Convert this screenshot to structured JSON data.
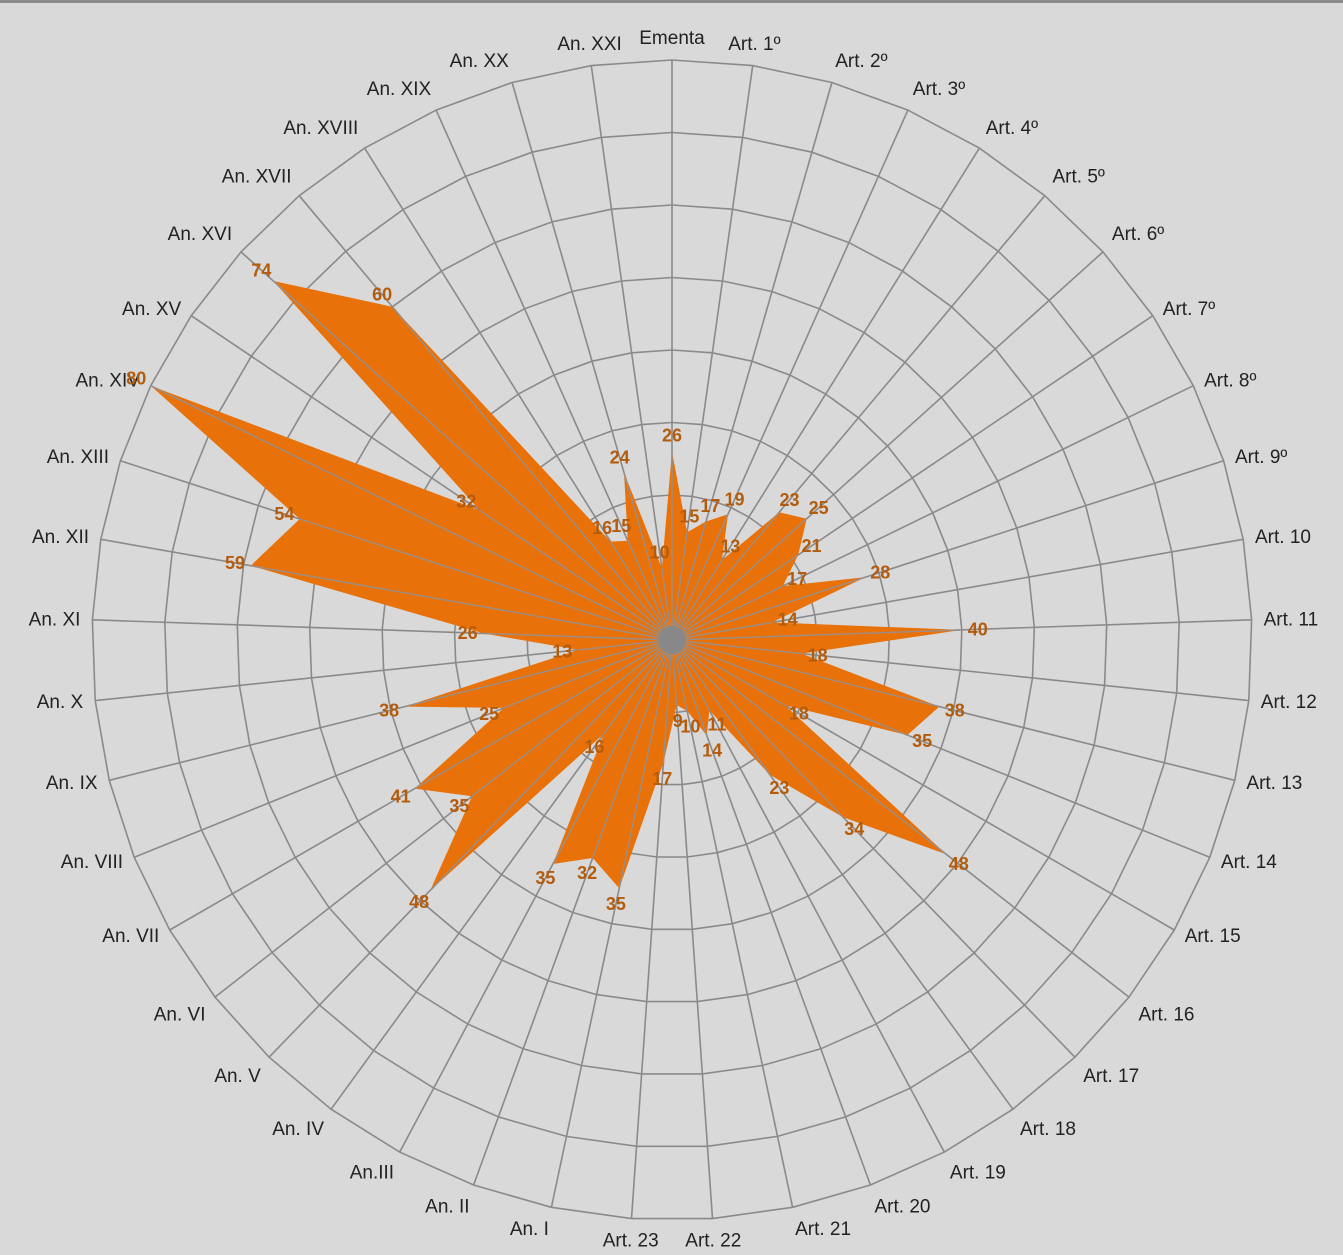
{
  "colors": {
    "background": "#d9d9d9",
    "grid": "#8a8a8a",
    "series_fill": "#e8710a",
    "data_label": "#b35c0e",
    "text": "#222222"
  },
  "chart_data": {
    "type": "radar",
    "categories": [
      "Ementa",
      "Art. 1º",
      "Art. 2º",
      "Art. 3º",
      "Art. 4º",
      "Art. 5º",
      "Art. 6º",
      "Art. 7º",
      "Art. 8º",
      "Art. 9º",
      "Art. 10",
      "Art. 11",
      "Art. 12",
      "Art. 13",
      "Art. 14",
      "Art. 15",
      "Art. 16",
      "Art. 17",
      "Art. 18",
      "Art. 19",
      "Art. 20",
      "Art. 21",
      "Art. 22",
      "Art. 23",
      "An. I",
      "An. II",
      "An.III",
      "An. IV",
      "An. V",
      "An. VI",
      "An. VII",
      "An. VIII",
      "An. IX",
      "An. X",
      "An. XI",
      "An. XII",
      "An. XIII",
      "An. XIV",
      "An. XV",
      "An. XVI",
      "An. XVII",
      "An. XVIII",
      "An. XIX",
      "An. XX",
      "An. XXI"
    ],
    "series": [
      {
        "values": [
          26,
          15,
          17,
          19,
          13,
          23,
          25,
          21,
          17,
          28,
          14,
          40,
          18,
          38,
          35,
          18,
          48,
          34,
          23,
          11,
          14,
          10,
          9,
          17,
          35,
          32,
          35,
          16,
          48,
          35,
          41,
          25,
          38,
          13,
          26,
          59,
          54,
          80,
          32,
          74,
          60,
          16,
          15,
          24,
          10
        ],
        "labels": [
          "26",
          "15",
          "17",
          "19",
          "13",
          "23",
          "25",
          "21",
          "17",
          "28",
          "14",
          "40",
          "18",
          "38",
          "35",
          "18",
          "48",
          "34",
          "23",
          "11",
          "14",
          "10",
          "9",
          "17",
          "35",
          "32",
          "35",
          "16",
          "48",
          "35",
          "41",
          "25",
          "38",
          "13",
          "26",
          "59",
          "54",
          "80",
          "32",
          "74",
          "60",
          "16",
          "15",
          "24",
          "10"
        ]
      }
    ],
    "grid": true,
    "legend": "none"
  }
}
